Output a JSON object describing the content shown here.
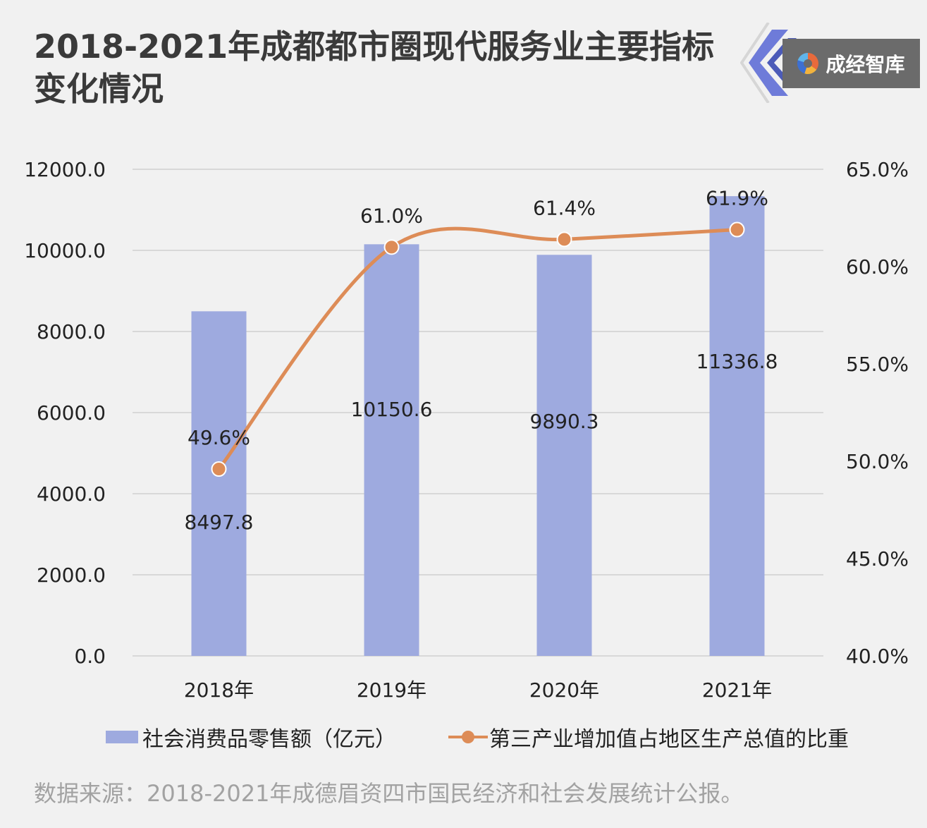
{
  "title": "2018-2021年成都都市圈现代服务业主要指标变化情况",
  "brand": {
    "text": "成经智库",
    "icon": "brand-logo-icon"
  },
  "source": "数据来源：2018-2021年成德眉资四市国民经济和社会发展统计公报。",
  "colors": {
    "bar": "#9eaadf",
    "line": "#dd8c57",
    "grid": "#cfcfcf",
    "background": "#f1f1f1"
  },
  "legend": {
    "bar_label": "社会消费品零售额（亿元）",
    "line_label": "第三产业增加值占地区生产总值的比重"
  },
  "chart_data": {
    "type": "bar",
    "categories": [
      "2018年",
      "2019年",
      "2020年",
      "2021年"
    ],
    "series": [
      {
        "name": "社会消费品零售额（亿元）",
        "type": "bar",
        "axis": "left",
        "values": [
          8497.8,
          10150.6,
          9890.3,
          11336.8
        ],
        "labels": [
          "8497.8",
          "10150.6",
          "9890.3",
          "11336.8"
        ]
      },
      {
        "name": "第三产业增加值占地区生产总值的比重",
        "type": "line",
        "axis": "right",
        "smooth": true,
        "values": [
          49.6,
          61.0,
          61.4,
          61.9
        ],
        "labels": [
          "49.6%",
          "61.0%",
          "61.4%",
          "61.9%"
        ]
      }
    ],
    "y_left": {
      "ylim": [
        0,
        12000
      ],
      "ticks": [
        0,
        2000,
        4000,
        6000,
        8000,
        10000,
        12000
      ],
      "tick_labels": [
        "0.0",
        "2000.0",
        "4000.0",
        "6000.0",
        "8000.0",
        "10000.0",
        "12000.0"
      ]
    },
    "y_right": {
      "ylim": [
        40,
        65
      ],
      "ticks": [
        40,
        45,
        50,
        55,
        60,
        65
      ],
      "tick_labels": [
        "40.0%",
        "45.0%",
        "50.0%",
        "55.0%",
        "60.0%",
        "65.0%"
      ]
    },
    "grid": true,
    "legend_position": "bottom"
  }
}
